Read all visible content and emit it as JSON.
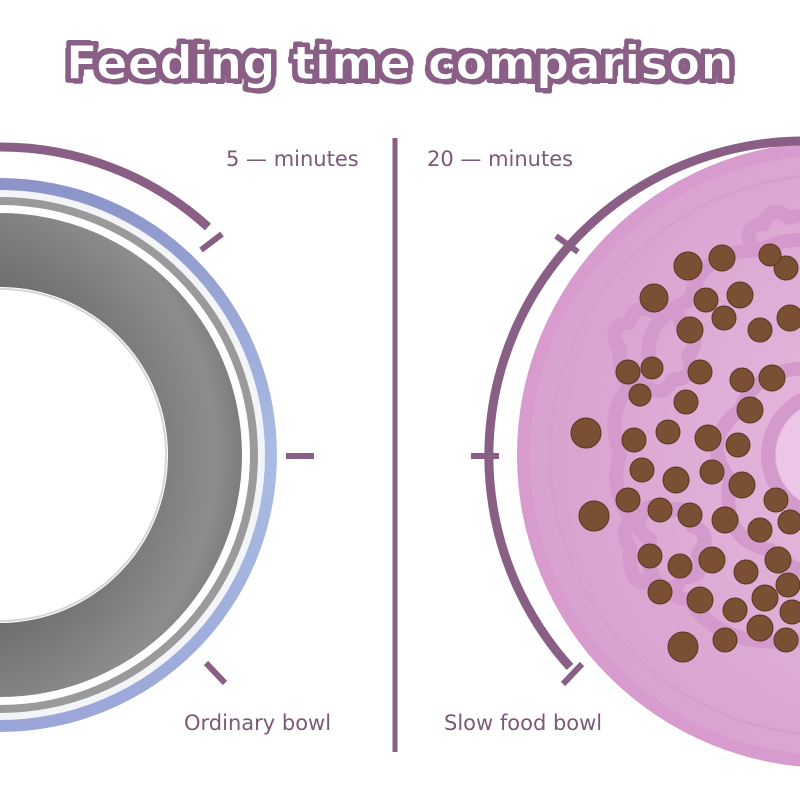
{
  "title": "Feeding time comparison",
  "left": {
    "time_label": "5 — minutes",
    "bowl_label": "Ordinary bowl",
    "bowl_icon": "stainless-steel-bowl-icon"
  },
  "right": {
    "time_label": "20 — minutes",
    "bowl_label": "Slow food bowl",
    "bowl_icon": "slow-feeder-bowl-icon"
  },
  "colors": {
    "accent": "#8a5f86",
    "text": "#7b5a78",
    "steel": "#8e8e8e",
    "bowl_pink": "#e6b5db",
    "kibble": "#7a4f33"
  }
}
